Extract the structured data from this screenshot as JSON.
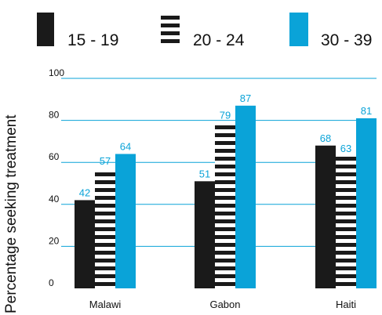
{
  "chart_data": {
    "type": "bar",
    "title": "",
    "xlabel": "",
    "ylabel": "Percentage seeking treatment",
    "ylim": [
      0,
      100
    ],
    "yticks": [
      "0",
      "20",
      "40",
      "60",
      "80",
      "100"
    ],
    "grid": true,
    "legend_position": "top",
    "categories": [
      "Malawi",
      "Gabon",
      "Haiti"
    ],
    "series": [
      {
        "name": "15 - 19",
        "style": "solid",
        "color": "#1a1a1a",
        "values": [
          42,
          51,
          68
        ]
      },
      {
        "name": "20 - 24",
        "style": "horizontal-stripes",
        "color": "#1a1a1a",
        "values": [
          57,
          79,
          63
        ]
      },
      {
        "name": "30 - 39",
        "style": "solid",
        "color": "#0aa3d8",
        "values": [
          64,
          87,
          81
        ]
      }
    ]
  },
  "colors": {
    "accent": "#0aa3d8",
    "dark": "#1a1a1a",
    "grid": "#0aa3d8"
  }
}
